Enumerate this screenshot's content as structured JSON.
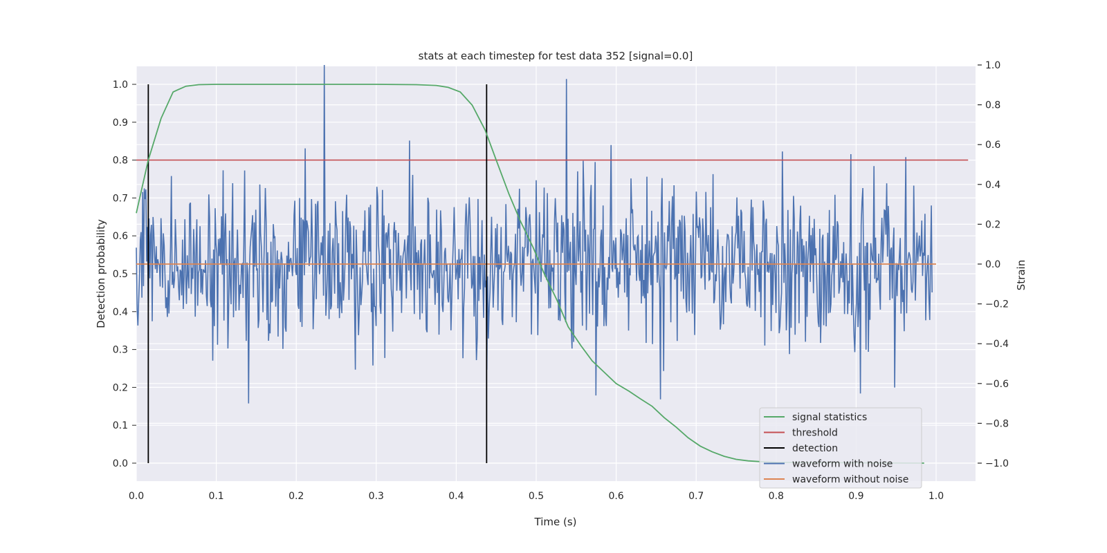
{
  "chart_data": {
    "type": "line",
    "title": "stats at each timestep for test data 352 [signal=0.0]",
    "xlabel": "Time (s)",
    "ylabel": "Detection probability",
    "ylabel_right": "Strain",
    "xlim": [
      0.0,
      1.05
    ],
    "ylim": [
      -0.05,
      1.05
    ],
    "ylim_right": [
      -1.09,
      1.0
    ],
    "x_ticks": [
      "0.0",
      "0.1",
      "0.2",
      "0.3",
      "0.4",
      "0.5",
      "0.6",
      "0.7",
      "0.8",
      "0.9",
      "1.0"
    ],
    "y_ticks": [
      "0.0",
      "0.1",
      "0.2",
      "0.3",
      "0.4",
      "0.5",
      "0.6",
      "0.7",
      "0.8",
      "0.9",
      "1.0"
    ],
    "y_right_ticks": [
      "−1.0",
      "−0.8",
      "−0.6",
      "−0.4",
      "−0.2",
      "0.0",
      "0.2",
      "0.4",
      "0.6",
      "0.8",
      "1.0"
    ],
    "grid": true,
    "legend_position": "lower-right",
    "colors": {
      "signal_statistics": "#55a868",
      "threshold": "#c44e52",
      "detection": "#000000",
      "waveform_with_noise": "#4c72b0",
      "waveform_without_noise": "#dd8452",
      "plot_background": "#eaeaf2"
    },
    "signal_statistics": {
      "x": [
        0.0,
        0.015,
        0.031,
        0.046,
        0.062,
        0.078,
        0.1,
        0.2,
        0.3,
        0.35,
        0.375,
        0.39,
        0.405,
        0.42,
        0.436,
        0.45,
        0.466,
        0.48,
        0.496,
        0.51,
        0.526,
        0.54,
        0.556,
        0.57,
        0.585,
        0.6,
        0.616,
        0.63,
        0.645,
        0.66,
        0.675,
        0.69,
        0.705,
        0.72,
        0.735,
        0.75,
        0.765,
        0.78,
        0.8,
        0.9,
        0.985
      ],
      "y": [
        0.66,
        0.8,
        0.91,
        0.98,
        0.995,
        0.999,
        1.0,
        1.0,
        1.0,
        0.999,
        0.997,
        0.992,
        0.98,
        0.945,
        0.88,
        0.8,
        0.71,
        0.64,
        0.57,
        0.5,
        0.43,
        0.36,
        0.31,
        0.27,
        0.24,
        0.21,
        0.19,
        0.17,
        0.15,
        0.12,
        0.095,
        0.067,
        0.045,
        0.03,
        0.018,
        0.01,
        0.006,
        0.004,
        0.002,
        0.001,
        0.0
      ]
    },
    "threshold": {
      "y": 0.8,
      "x_range": [
        0.0,
        1.04
      ]
    },
    "detections": [
      {
        "x": 0.015,
        "y_range": [
          0.0,
          1.0
        ]
      },
      {
        "x": 0.438,
        "y_range": [
          0.0,
          1.0
        ]
      }
    ],
    "waveform_without_noise": {
      "axis": "right",
      "x_range": [
        0.0,
        1.0
      ],
      "y": 0.0
    },
    "waveform_with_noise": {
      "axis": "right",
      "x_range": [
        0.0,
        0.995
      ],
      "std": 0.2,
      "peaks": [
        {
          "x": 0.235,
          "y": 1.0
        },
        {
          "x": 0.538,
          "y": 0.93
        },
        {
          "x": 0.14,
          "y": -0.7
        },
        {
          "x": 0.905,
          "y": -0.65
        },
        {
          "x": 0.575,
          "y": -0.66
        },
        {
          "x": 0.655,
          "y": -0.68
        }
      ]
    },
    "legend": [
      {
        "label": "signal statistics",
        "color_key": "signal_statistics"
      },
      {
        "label": "threshold",
        "color_key": "threshold"
      },
      {
        "label": "detection",
        "color_key": "detection"
      },
      {
        "label": "waveform with noise",
        "color_key": "waveform_with_noise"
      },
      {
        "label": "waveform without noise",
        "color_key": "waveform_without_noise"
      }
    ]
  }
}
